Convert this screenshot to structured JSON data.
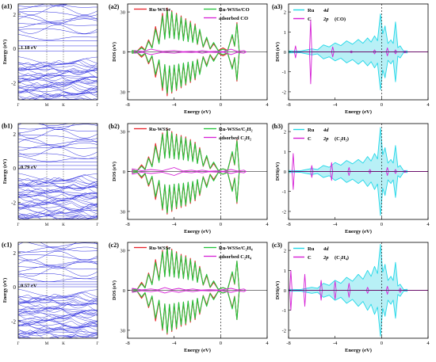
{
  "figure": {
    "rows": [
      {
        "band": {
          "panel_label": "(a1)",
          "ylabel": "Energy (eV)",
          "yticks": [
            2,
            0,
            -2
          ],
          "ylim": [
            -3.0,
            2.6
          ],
          "xtick_labels": [
            "Γ",
            "M",
            "K",
            "Γ"
          ],
          "gap_label": "1.18 eV"
        },
        "dos": {
          "panel_label": "(a2)",
          "ylabel": "DOS (eV)",
          "xlabel": "Energy (eV)",
          "yticks": [
            30,
            0,
            30
          ],
          "xticks": [
            -8,
            -4,
            0,
            4
          ],
          "legend": [
            "Ru-WSSe",
            "Ru-WSSe/CO",
            "adsorbed CO"
          ]
        },
        "pdos": {
          "panel_label": "(a3)",
          "ylabel": "DOS (eV)",
          "xlabel": "Energy (eV)",
          "yticks": [
            2,
            1,
            0,
            -1,
            -2
          ],
          "xticks": [
            -8,
            -4,
            0,
            4
          ],
          "legend": [
            {
              "element": "Ru",
              "orbital": "4d",
              "species": ""
            },
            {
              "element": "C",
              "orbital": "2p",
              "species": "(CO)"
            }
          ]
        }
      },
      {
        "band": {
          "panel_label": "(b1)",
          "ylabel": "Energy (eV)",
          "yticks": [
            2,
            0,
            -2
          ],
          "ylim": [
            -3.0,
            2.6
          ],
          "xtick_labels": [
            "Γ",
            "M",
            "K",
            "Γ"
          ],
          "gap_label": "0.79 eV"
        },
        "dos": {
          "panel_label": "(b2)",
          "ylabel": "DOS (eV)",
          "xlabel": "Energy (eV)",
          "yticks": [
            30,
            0,
            30
          ],
          "xticks": [
            -8,
            -4,
            0,
            4
          ],
          "legend": [
            "Ru-WSSe",
            "Ru-WSSe/C₂H₂",
            "adsorbed C₂H₂"
          ]
        },
        "pdos": {
          "panel_label": "(b3)",
          "ylabel": "DOS(eV)",
          "xlabel": "Energy (eV)",
          "yticks": [
            2,
            1,
            0,
            -1,
            -2
          ],
          "xticks": [
            -8,
            -4,
            0,
            4
          ],
          "legend": [
            {
              "element": "Ru",
              "orbital": "4d",
              "species": ""
            },
            {
              "element": "C",
              "orbital": "2p",
              "species": "(C₂H₂)"
            }
          ]
        }
      },
      {
        "band": {
          "panel_label": "(c1)",
          "ylabel": "Energy (eV)",
          "yticks": [
            2,
            0,
            -2
          ],
          "ylim": [
            -3.0,
            2.6
          ],
          "xtick_labels": [
            "Γ",
            "M",
            "K",
            "Γ"
          ],
          "gap_label": "0.57 eV"
        },
        "dos": {
          "panel_label": "(c2)",
          "ylabel": "DOS (eV)",
          "xlabel": "Energy (eV)",
          "yticks": [
            30,
            0,
            30
          ],
          "xticks": [
            -8,
            -4,
            0,
            4
          ],
          "legend": [
            "Ru-WSSe",
            "Ru-WSSe/C₂H₄",
            "adsorbed C₂H₄"
          ]
        },
        "pdos": {
          "panel_label": "(c3)",
          "ylabel": "DOS(eV)",
          "xlabel": "Energy (eV)",
          "yticks": [
            2,
            1,
            0,
            -1,
            -2
          ],
          "xticks": [
            -8,
            -4,
            0,
            4
          ],
          "legend": [
            {
              "element": "Ru",
              "orbital": "4d",
              "species": ""
            },
            {
              "element": "C",
              "orbital": "2p",
              "species": "(C₂H₄)"
            }
          ]
        }
      }
    ]
  },
  "colors": {
    "band": "#2a2ae0",
    "ru_wsse": "#e8232a",
    "adsorbed_system": "#22c33a",
    "adsorbate": "#d620d6",
    "ru4d": "#22d8e8",
    "ru4d_fill": "#b8f0f6",
    "axis": "#000000"
  },
  "chart_data": [
    {
      "type": "line",
      "panel": "(a1)",
      "ylabel": "Energy (eV)",
      "ylim": [
        -3.0,
        2.6
      ],
      "band_gap_eV": 1.18,
      "ticks": [
        "Γ",
        "M",
        "K",
        "Γ"
      ]
    },
    {
      "type": "area",
      "panel": "(a2)",
      "xlabel": "Energy (eV)",
      "ylabel": "DOS (eV)",
      "xlim": [
        -8,
        4
      ],
      "ylim": [
        -36,
        36
      ],
      "series": [
        {
          "name": "Ru-WSSe",
          "x": [
            -7.6,
            -6.8,
            -6.2,
            -5.6,
            -5.0,
            -4.6,
            -4.2,
            -3.8,
            -3.4,
            -3.0,
            -2.6,
            -2.2,
            -1.8,
            -1.2,
            -0.6,
            0.2,
            1.0,
            1.4
          ],
          "values": [
            1,
            4,
            9,
            19,
            29,
            33,
            31,
            29,
            27,
            25,
            23,
            21,
            16,
            10,
            6,
            3,
            12,
            22
          ]
        },
        {
          "name": "Ru-WSSe/CO",
          "x": [
            -7.6,
            -6.8,
            -6.2,
            -5.6,
            -5.0,
            -4.6,
            -4.2,
            -3.8,
            -3.4,
            -3.0,
            -2.6,
            -2.2,
            -1.8,
            -1.2,
            -0.6,
            0.2,
            1.0,
            1.4
          ],
          "values": [
            1,
            3,
            8,
            17,
            27,
            31,
            30,
            28,
            26,
            24,
            22,
            20,
            17,
            11,
            7,
            2,
            13,
            21
          ]
        },
        {
          "name": "adsorbed CO",
          "x": [
            -7.4,
            -6.0,
            -4.0,
            -2.5,
            -1.6,
            -0.4,
            0.9,
            2.0
          ],
          "values": [
            1,
            2,
            1,
            0.5,
            1,
            0.5,
            2,
            1
          ]
        }
      ]
    },
    {
      "type": "area",
      "panel": "(a3)",
      "xlabel": "Energy (eV)",
      "ylabel": "DOS (eV)",
      "xlim": [
        -8,
        4
      ],
      "ylim": [
        -2.4,
        2.4
      ],
      "series": [
        {
          "name": "Ru 4d",
          "x": [
            -8,
            -6,
            -5,
            -4,
            -3,
            -2,
            -1.2,
            -0.6,
            -0.1,
            0.3,
            0.8,
            1.2,
            1.6,
            2.2
          ],
          "values": [
            0.05,
            0.15,
            0.35,
            0.45,
            0.55,
            0.62,
            0.7,
            0.8,
            1.9,
            1.3,
            0.6,
            1.5,
            0.3,
            0.05
          ]
        },
        {
          "name": "C 2p (CO)",
          "x": [
            -7.4,
            -6.1,
            -4.2,
            -2.6,
            -0.6,
            0.5,
            1.2,
            2.0
          ],
          "values": [
            0.3,
            1.6,
            0.25,
            0.05,
            0.1,
            0.2,
            0.1,
            0.05
          ]
        }
      ]
    },
    {
      "type": "line",
      "panel": "(b1)",
      "ylabel": "Energy (eV)",
      "ylim": [
        -3.0,
        2.6
      ],
      "band_gap_eV": 0.79,
      "ticks": [
        "Γ",
        "M",
        "K",
        "Γ"
      ]
    },
    {
      "type": "area",
      "panel": "(b2)",
      "xlabel": "Energy (eV)",
      "ylabel": "DOS (eV)",
      "xlim": [
        -8,
        4
      ],
      "ylim": [
        -36,
        36
      ],
      "series": [
        {
          "name": "Ru-WSSe",
          "x": [
            -7.6,
            -6.8,
            -6.2,
            -5.6,
            -5.0,
            -4.6,
            -4.2,
            -3.8,
            -3.4,
            -3.0,
            -2.6,
            -2.2,
            -1.8,
            -1.2,
            -0.6,
            0.2,
            1.0,
            1.4
          ],
          "values": [
            1,
            5,
            11,
            21,
            29,
            32,
            30,
            28,
            27,
            26,
            24,
            22,
            18,
            11,
            6,
            2,
            14,
            24
          ]
        },
        {
          "name": "Ru-WSSe/C₂H₂",
          "x": [
            -7.6,
            -6.8,
            -6.2,
            -5.6,
            -5.0,
            -4.6,
            -4.2,
            -3.8,
            -3.4,
            -3.0,
            -2.6,
            -2.2,
            -1.8,
            -1.2,
            -0.6,
            0.2,
            1.0,
            1.4
          ],
          "values": [
            1,
            4,
            10,
            19,
            28,
            31,
            29,
            27,
            26,
            25,
            23,
            21,
            17,
            12,
            7,
            2,
            15,
            23
          ]
        },
        {
          "name": "adsorbed C₂H₂",
          "x": [
            -7.6,
            -6.0,
            -4.0,
            -2.5,
            -1.6,
            -0.4,
            0.9,
            2.0
          ],
          "values": [
            2,
            1.5,
            3,
            1,
            1,
            0.5,
            1.5,
            1
          ]
        }
      ]
    },
    {
      "type": "area",
      "panel": "(b3)",
      "xlabel": "Energy (eV)",
      "ylabel": "DOS(eV)",
      "xlim": [
        -8,
        4
      ],
      "ylim": [
        -2.4,
        2.4
      ],
      "series": [
        {
          "name": "Ru 4d",
          "x": [
            -8,
            -6,
            -5,
            -4,
            -3,
            -2,
            -1.2,
            -0.6,
            -0.1,
            0.3,
            0.8,
            1.2,
            1.6,
            2.2
          ],
          "values": [
            0.05,
            0.15,
            0.3,
            0.45,
            0.55,
            0.6,
            0.75,
            0.9,
            2.2,
            1.2,
            0.6,
            1.3,
            0.3,
            0.05
          ]
        },
        {
          "name": "C 2p (C₂H₂)",
          "x": [
            -7.6,
            -6.0,
            -4.3,
            -2.8,
            -1.0,
            0.5,
            1.2,
            2.0
          ],
          "values": [
            0.9,
            0.3,
            0.45,
            0.2,
            0.1,
            0.2,
            0.1,
            0.05
          ]
        }
      ]
    },
    {
      "type": "line",
      "panel": "(c1)",
      "ylabel": "Energy (eV)",
      "ylim": [
        -3.0,
        2.6
      ],
      "band_gap_eV": 0.57,
      "ticks": [
        "Γ",
        "M",
        "K",
        "Γ"
      ]
    },
    {
      "type": "area",
      "panel": "(c2)",
      "xlabel": "Energy (eV)",
      "ylabel": "DOS (eV)",
      "xlim": [
        -8,
        4
      ],
      "ylim": [
        -36,
        36
      ],
      "series": [
        {
          "name": "Ru-WSSe",
          "x": [
            -7.6,
            -6.8,
            -6.2,
            -5.6,
            -5.0,
            -4.6,
            -4.2,
            -3.8,
            -3.4,
            -3.0,
            -2.6,
            -2.2,
            -1.8,
            -1.2,
            -0.6,
            0.2,
            1.0,
            1.4
          ],
          "values": [
            1,
            6,
            13,
            23,
            30,
            33,
            31,
            29,
            27,
            26,
            24,
            22,
            18,
            11,
            6,
            2,
            13,
            22
          ]
        },
        {
          "name": "Ru-WSSe/C₂H₄",
          "x": [
            -7.6,
            -6.8,
            -6.2,
            -5.6,
            -5.0,
            -4.6,
            -4.2,
            -3.8,
            -3.4,
            -3.0,
            -2.6,
            -2.2,
            -1.8,
            -1.2,
            -0.6,
            0.2,
            1.0,
            1.4
          ],
          "values": [
            1,
            5,
            12,
            21,
            29,
            32,
            30,
            28,
            26,
            25,
            23,
            21,
            17,
            12,
            7,
            2,
            14,
            22
          ]
        },
        {
          "name": "adsorbed C₂H₄",
          "x": [
            -7.6,
            -6.0,
            -4.8,
            -3.6,
            -2.4,
            -1.0,
            0.9,
            2.0
          ],
          "values": [
            1.5,
            1,
            2,
            1.5,
            1,
            0.5,
            1.5,
            1
          ]
        }
      ]
    },
    {
      "type": "area",
      "panel": "(c3)",
      "xlabel": "Energy (eV)",
      "ylabel": "DOS(eV)",
      "xlim": [
        -8,
        4
      ],
      "ylim": [
        -2.4,
        2.4
      ],
      "series": [
        {
          "name": "Ru 4d",
          "x": [
            -8,
            -6,
            -5,
            -4,
            -3,
            -2,
            -1.2,
            -0.6,
            -0.1,
            0.3,
            0.8,
            1.2,
            1.6,
            2.2
          ],
          "values": [
            0.05,
            0.15,
            0.35,
            0.5,
            0.65,
            0.8,
            1.0,
            1.2,
            2.3,
            1.3,
            0.7,
            1.4,
            0.3,
            0.05
          ]
        },
        {
          "name": "C 2p (C₂H₄)",
          "x": [
            -7.8,
            -6.6,
            -5.2,
            -4.0,
            -2.8,
            -1.2,
            0.5,
            1.6
          ],
          "values": [
            1.0,
            0.8,
            0.5,
            0.45,
            0.35,
            0.15,
            0.2,
            0.1
          ]
        }
      ]
    }
  ]
}
